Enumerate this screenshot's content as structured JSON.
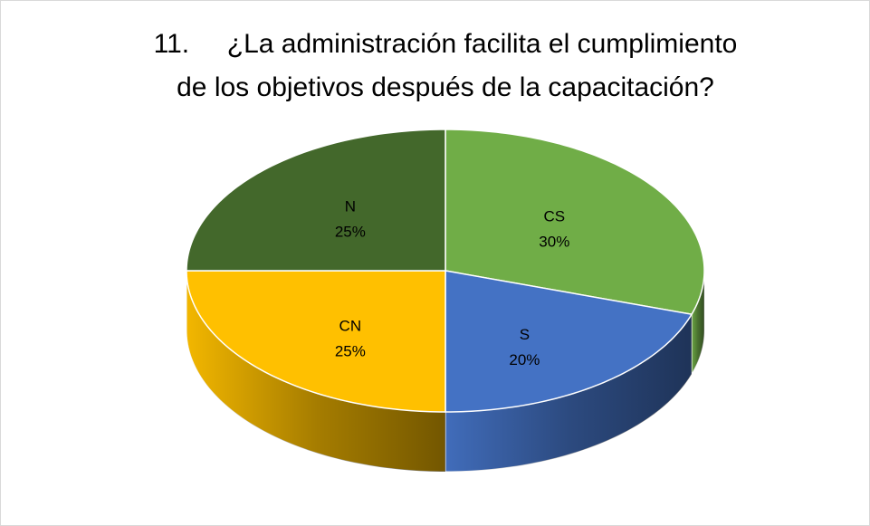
{
  "chart_data": {
    "type": "pie3d",
    "title": [
      "11.     ¿La administración facilita el cumplimiento",
      "de los objetivos después de la capacitación?"
    ],
    "categories": [
      "CS",
      "S",
      "CN",
      "N"
    ],
    "values": [
      30,
      20,
      25,
      25
    ],
    "value_labels": [
      "30%",
      "20%",
      "25%",
      "25%"
    ],
    "colors": [
      "#70ad47",
      "#4472c4",
      "#ffc000",
      "#43682b"
    ]
  }
}
